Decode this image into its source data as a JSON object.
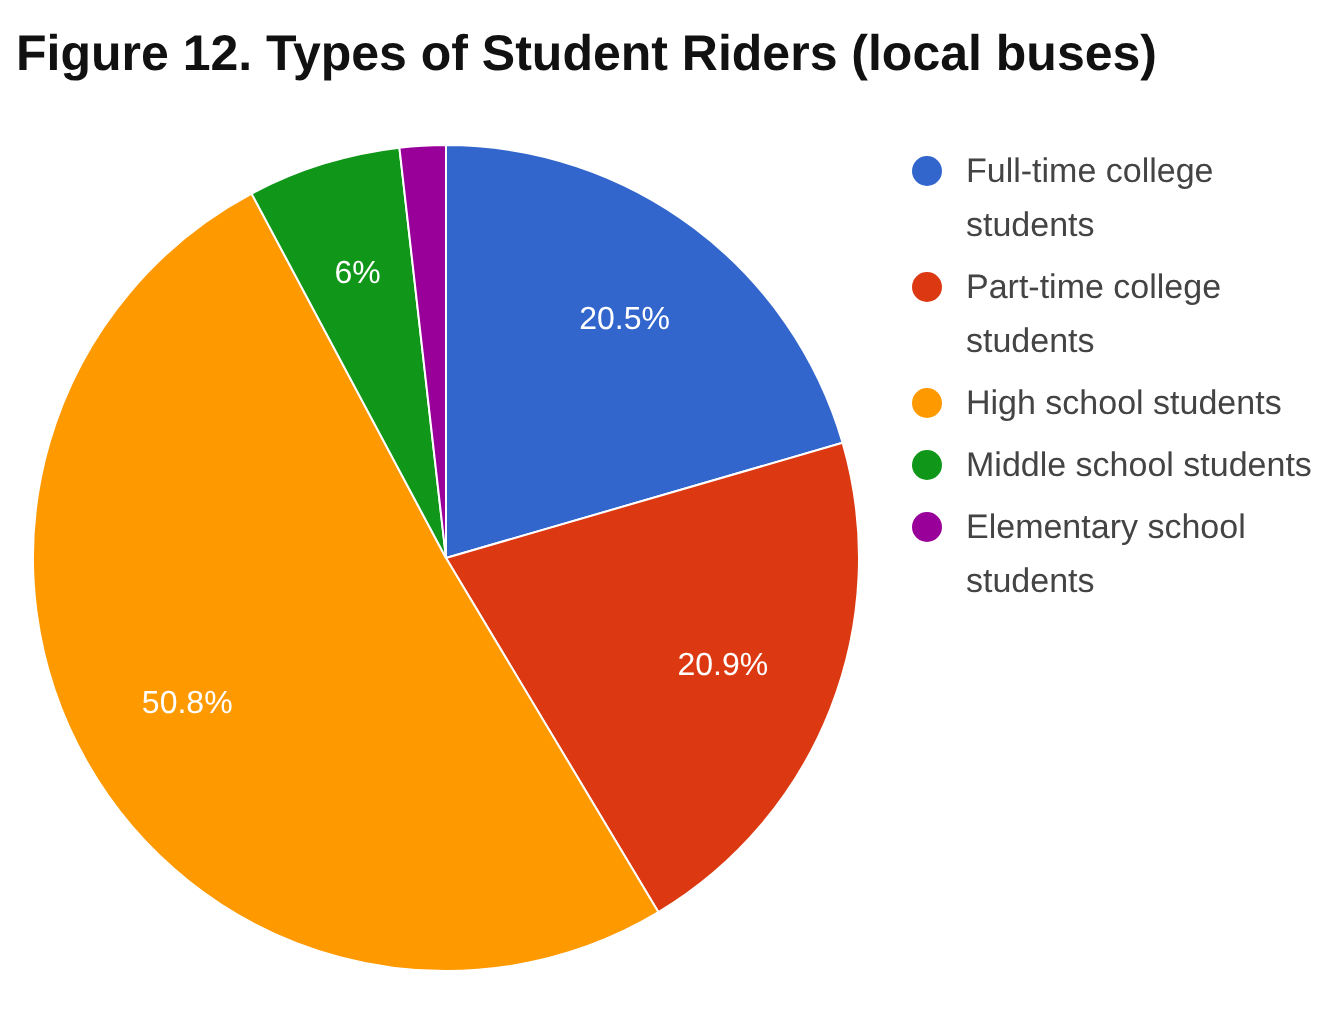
{
  "chart_data": {
    "type": "pie",
    "title": "Figure 12. Types of Student Riders (local buses)",
    "categories": [
      "Full-time college students",
      "Part-time college students",
      "High school students",
      "Middle school students",
      "Elementary school students"
    ],
    "values": [
      20.5,
      20.9,
      50.8,
      6,
      1.8
    ],
    "colors": [
      "#3366cc",
      "#dc3912",
      "#ff9900",
      "#109618",
      "#990099"
    ],
    "value_labels": [
      "20.5%",
      "20.9%",
      "50.8%",
      "6%",
      null
    ],
    "legend": "right"
  }
}
